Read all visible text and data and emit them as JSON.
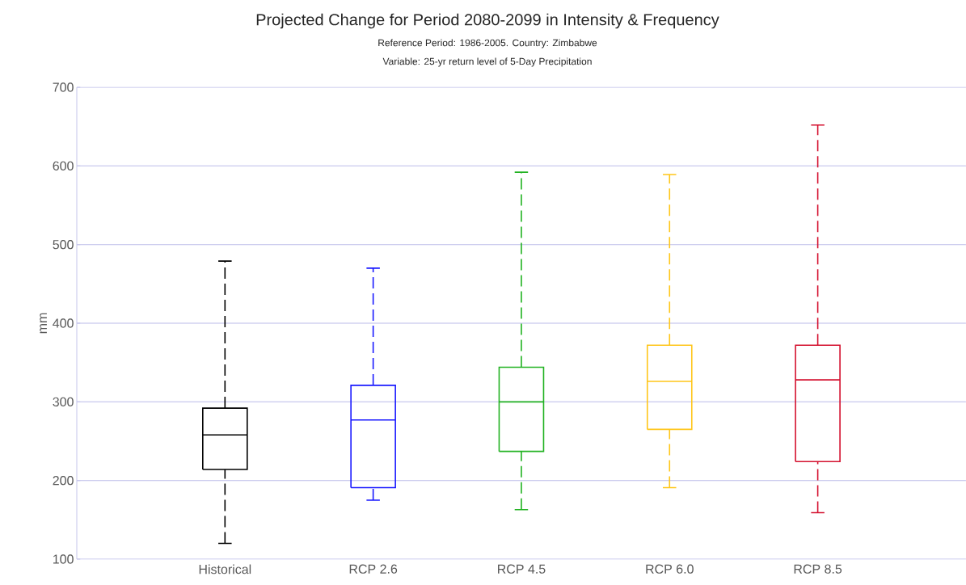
{
  "chart_data": {
    "type": "box",
    "title": "Projected Change for Period 2080-2099 in Intensity & Frequency",
    "subtitle": "Reference Period: 1986-2005. Country: Zimbabwe",
    "annotations": [
      "Variable: 25-yr return level of 5-Day Precipitation"
    ],
    "ylabel": "mm",
    "categories": [
      "Historical",
      "RCP 2.6",
      "RCP 4.5",
      "RCP 6.0",
      "RCP 8.5"
    ],
    "colors": [
      "#000000",
      "#1a1aff",
      "#22b222",
      "#ffc61a",
      "#d4112f"
    ],
    "boxes": [
      {
        "low": 120,
        "q1": 214,
        "median": 258,
        "q3": 292,
        "high": 479
      },
      {
        "low": 175,
        "q1": 191,
        "median": 277,
        "q3": 321,
        "high": 470
      },
      {
        "low": 163,
        "q1": 237,
        "median": 300,
        "q3": 344,
        "high": 592
      },
      {
        "low": 191,
        "q1": 265,
        "median": 326,
        "q3": 372,
        "high": 589
      },
      {
        "low": 159,
        "q1": 224,
        "median": 328,
        "q3": 372,
        "high": 652
      }
    ],
    "ylim": [
      100,
      700
    ],
    "yticks": [
      100,
      200,
      300,
      400,
      500,
      600,
      700
    ],
    "grid": "y"
  }
}
